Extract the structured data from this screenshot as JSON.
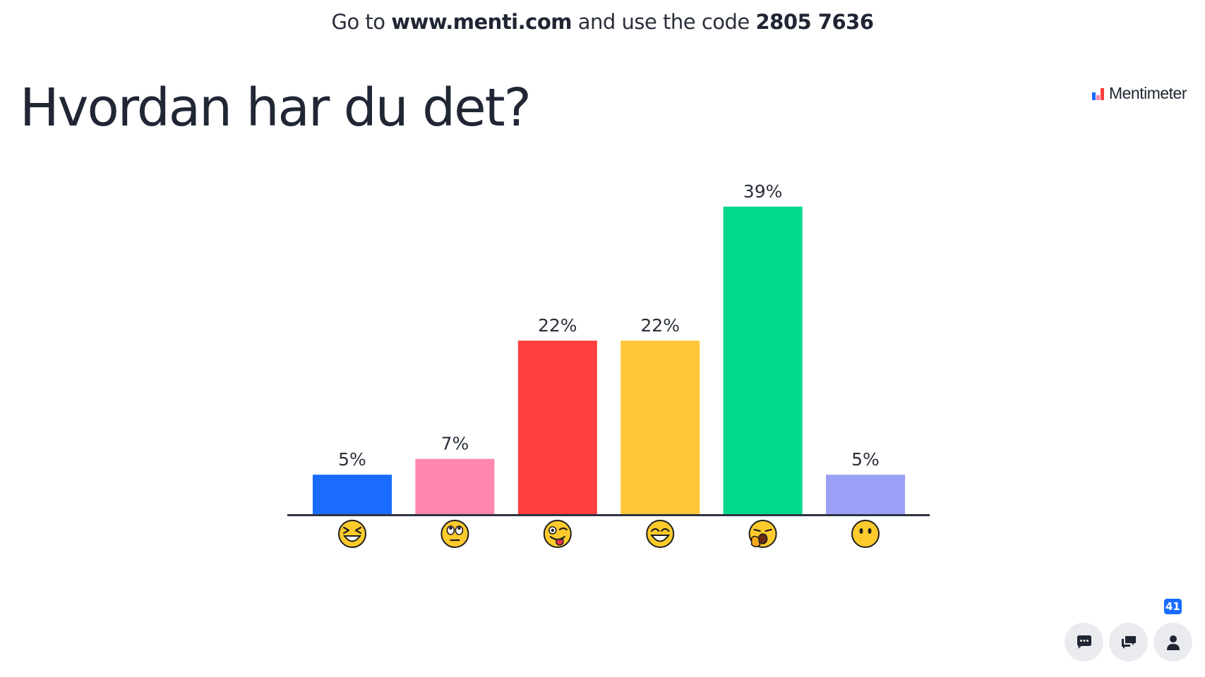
{
  "header": {
    "prefix": "Go to",
    "url": "www.menti.com",
    "middle": "and use the code",
    "code": "2805 7636"
  },
  "question": {
    "title": "Hvordan har du det?"
  },
  "brand": {
    "name": "Mentimeter"
  },
  "chart_data": {
    "type": "bar",
    "categories": [
      "laughing-squint-emoji",
      "eye-roll-emoji",
      "winking-tongue-emoji",
      "grinning-emoji",
      "yawning-emoji",
      "no-mouth-emoji"
    ],
    "values": [
      5,
      7,
      22,
      22,
      39,
      5
    ],
    "labels": [
      "5%",
      "7%",
      "22%",
      "22%",
      "39%",
      "5%"
    ],
    "colors": [
      "#196cff",
      "#ff86ae",
      "#ff403f",
      "#ffc63a",
      "#00d98b",
      "#9aa0f5"
    ],
    "ylim": [
      0,
      39
    ],
    "grid": false
  },
  "controls": {
    "participant_count": "41"
  },
  "colors": {
    "axis": "#2e3340",
    "text": "#1f2533",
    "emoji_face": "#ffcb2c",
    "emoji_outline": "#1f1f1f",
    "control_bg": "#e9ebef",
    "badge": "#196cff"
  }
}
